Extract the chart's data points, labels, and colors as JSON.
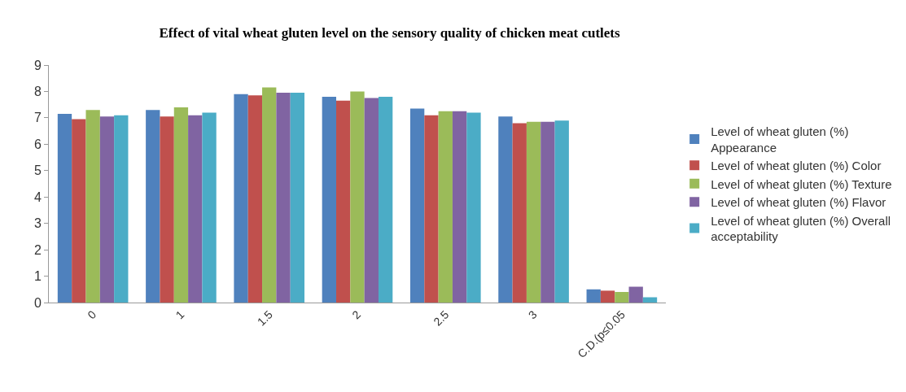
{
  "chart_data": {
    "type": "bar",
    "title": "Effect of vital wheat gluten level on the sensory quality of chicken meat cutlets",
    "categories": [
      "0",
      "1",
      "1.5",
      "2",
      "2.5",
      "3",
      "C.D.(p≤0.05"
    ],
    "series": [
      {
        "name": "Level of wheat gluten (%) Appearance",
        "color": "#4f81bd",
        "values": [
          7.15,
          7.3,
          7.9,
          7.8,
          7.35,
          7.05,
          0.5
        ]
      },
      {
        "name": "Level of wheat gluten (%) Color",
        "color": "#c0504d",
        "values": [
          6.95,
          7.05,
          7.85,
          7.65,
          7.1,
          6.8,
          0.45
        ]
      },
      {
        "name": "Level of wheat gluten (%) Texture",
        "color": "#9bbb59",
        "values": [
          7.3,
          7.4,
          8.15,
          8.0,
          7.25,
          6.85,
          0.4
        ]
      },
      {
        "name": "Level of wheat gluten (%) Flavor",
        "color": "#8064a2",
        "values": [
          7.05,
          7.1,
          7.95,
          7.75,
          7.25,
          6.85,
          0.6
        ]
      },
      {
        "name": "Level of wheat gluten (%) Overall acceptability",
        "color": "#4bacc6",
        "values": [
          7.1,
          7.2,
          7.95,
          7.8,
          7.2,
          6.9,
          0.2
        ]
      }
    ],
    "ylim": [
      0,
      9
    ],
    "yticks": [
      0,
      1,
      2,
      3,
      4,
      5,
      6,
      7,
      8,
      9
    ],
    "grid": false,
    "legend": "right"
  }
}
